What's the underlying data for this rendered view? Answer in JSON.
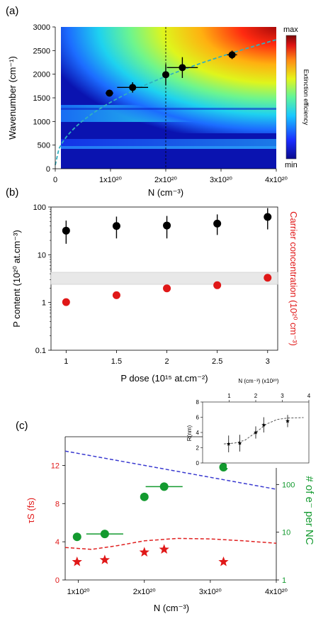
{
  "chart_data": [
    {
      "panel": "(a)",
      "type": "heatmap",
      "xlabel": "N (cm⁻³)",
      "ylabel": "Wavenumber (cm⁻¹)",
      "xlim": [
        0,
        4e+20
      ],
      "ylim": [
        0,
        3000
      ],
      "xticks": [
        {
          "v": 0,
          "label": "0"
        },
        {
          "v": 1e+20,
          "label": "1x10²⁰"
        },
        {
          "v": 2e+20,
          "label": "2x10²⁰"
        },
        {
          "v": 3e+20,
          "label": "3x10²⁰"
        },
        {
          "v": 4e+20,
          "label": "4x10²⁰"
        }
      ],
      "yticks": [
        {
          "v": 0,
          "label": "0"
        },
        {
          "v": 500,
          "label": "500"
        },
        {
          "v": 1000,
          "label": "1000"
        },
        {
          "v": 1500,
          "label": "1500"
        },
        {
          "v": 2000,
          "label": "2000"
        },
        {
          "v": 2500,
          "label": "2500"
        },
        {
          "v": 3000,
          "label": "3000"
        }
      ],
      "colorbar": {
        "max_label": "max",
        "min_label": "min",
        "label": "Extinction efficiency"
      },
      "points": [
        {
          "x": 9.8e+19,
          "y": 1600,
          "xerr": 7e+18,
          "yerr": 70
        },
        {
          "x": 1.4e+20,
          "y": 1720,
          "xerr": 2.8e+19,
          "yerr": 110
        },
        {
          "x": 2e+20,
          "y": 1990,
          "xerr": 0.0,
          "yerr": 220
        },
        {
          "x": 2.3e+20,
          "y": 2140,
          "xerr": 2.8e+19,
          "yerr": 220
        },
        {
          "x": 3.2e+20,
          "y": 2410,
          "xerr": 9e+18,
          "yerr": 90
        }
      ],
      "vline_x": 2e+20,
      "fit_curve": "dashed cyan sqrt-like curve"
    },
    {
      "panel": "(b)",
      "type": "scatter",
      "xlabel": "P dose (10¹⁵ at.cm⁻²)",
      "ylabel": "P content (10²⁰ at.cm⁻³)",
      "ylabel_right": "Carrier concentration (10²⁰ cm⁻³)",
      "xlim": [
        0.85,
        3.1
      ],
      "ylim": [
        0.1,
        100
      ],
      "yscale": "log",
      "xticks": [
        {
          "v": 1,
          "label": "1"
        },
        {
          "v": 1.5,
          "label": "1.5"
        },
        {
          "v": 2,
          "label": "2"
        },
        {
          "v": 2.5,
          "label": "2.5"
        },
        {
          "v": 3,
          "label": "3"
        }
      ],
      "yticks": [
        {
          "v": 0.1,
          "label": "0.1"
        },
        {
          "v": 1,
          "label": "1"
        },
        {
          "v": 10,
          "label": "10"
        },
        {
          "v": 100,
          "label": "100"
        }
      ],
      "band": [
        2.4,
        4.3
      ],
      "series": [
        {
          "color": "#000000",
          "x": [
            1,
            1.5,
            2,
            2.5,
            3
          ],
          "y": [
            32,
            40,
            41,
            45,
            62
          ],
          "yerr_low": [
            17,
            22,
            22,
            26,
            34
          ],
          "yerr_high": [
            52,
            63,
            65,
            70,
            95
          ]
        },
        {
          "color": "#e01818",
          "x": [
            1,
            1.5,
            2,
            2.5,
            3
          ],
          "y": [
            1.02,
            1.42,
            1.98,
            2.3,
            3.3
          ],
          "yerr_low": [
            0.95,
            1.2,
            1.9,
            2.2,
            3.2
          ],
          "yerr_high": [
            1.1,
            1.55,
            2.05,
            2.45,
            3.4
          ]
        }
      ]
    },
    {
      "panel": "(c)",
      "type": "scatter",
      "xlabel": "N (cm⁻³)",
      "ylabel": "τS (fs)",
      "ylabel_right": "# of e⁻ per NC",
      "xlim": [
        8e+19,
        4e+20
      ],
      "ylim": [
        0,
        15
      ],
      "ylim_right": [
        1,
        1000
      ],
      "xticks": [
        {
          "v": 1e+20,
          "label": "1x10²⁰"
        },
        {
          "v": 2e+20,
          "label": "2x10²⁰"
        },
        {
          "v": 3e+20,
          "label": "3x10²⁰"
        },
        {
          "v": 4e+20,
          "label": "4x10²⁰"
        }
      ],
      "yticks": [
        {
          "v": 0,
          "label": "0"
        },
        {
          "v": 4,
          "label": "4"
        },
        {
          "v": 8,
          "label": "8"
        },
        {
          "v": 12,
          "label": "12"
        }
      ],
      "yticks_right": [
        {
          "v": 1,
          "label": "1"
        },
        {
          "v": 10,
          "label": "10"
        },
        {
          "v": 100,
          "label": "100"
        }
      ],
      "stars": {
        "x": [
          9.8e+19,
          1.4e+20,
          2e+20,
          2.3e+20,
          3.2e+20
        ],
        "y": [
          1.9,
          2.1,
          2.9,
          3.2,
          1.9
        ]
      },
      "green_points": {
        "x": [
          9.8e+19,
          1.4e+20,
          2e+20,
          2.3e+20,
          3.2e+20
        ],
        "y": [
          8,
          9.2,
          55,
          90,
          230
        ],
        "xerr": [
          5e+18,
          2.8e+19,
          0,
          2.8e+19,
          0
        ]
      },
      "red_dashed": {
        "x": [
          8e+19,
          1.2e+20,
          1.6e+20,
          2e+20,
          2.5e+20,
          3e+20,
          3.5e+20,
          4e+20
        ],
        "y": [
          3.4,
          3.2,
          3.6,
          4.1,
          4.35,
          4.3,
          4.1,
          3.85
        ]
      },
      "blue_dashed": {
        "x": [
          8e+19,
          4e+20
        ],
        "y": [
          13.5,
          9.5
        ]
      }
    },
    {
      "panel": "inset",
      "type": "scatter",
      "xlabel": "N (cm⁻³) (x10²⁰)",
      "ylabel": "R(nm)",
      "xlim": [
        0,
        4
      ],
      "ylim": [
        0,
        8
      ],
      "xticks": [
        {
          "v": 1,
          "label": "1"
        },
        {
          "v": 2,
          "label": "2"
        },
        {
          "v": 3,
          "label": "3"
        },
        {
          "v": 4,
          "label": "4"
        }
      ],
      "yticks": [
        {
          "v": 0,
          "label": "0"
        },
        {
          "v": 2,
          "label": "2"
        },
        {
          "v": 4,
          "label": "4"
        },
        {
          "v": 6,
          "label": "6"
        },
        {
          "v": 8,
          "label": "8"
        }
      ],
      "points": {
        "x": [
          0.98,
          1.4,
          2.0,
          2.3,
          3.2
        ],
        "y": [
          2.5,
          2.6,
          4.0,
          5.0,
          5.5
        ],
        "yerr": [
          1.1,
          1.1,
          0.8,
          1.0,
          0.8
        ]
      },
      "fit": {
        "x": [
          0.8,
          1.2,
          1.6,
          2.0,
          2.4,
          2.8,
          3.2,
          3.8
        ],
        "y": [
          2.5,
          2.6,
          3.0,
          4.0,
          5.1,
          5.7,
          5.9,
          5.95
        ]
      }
    }
  ]
}
